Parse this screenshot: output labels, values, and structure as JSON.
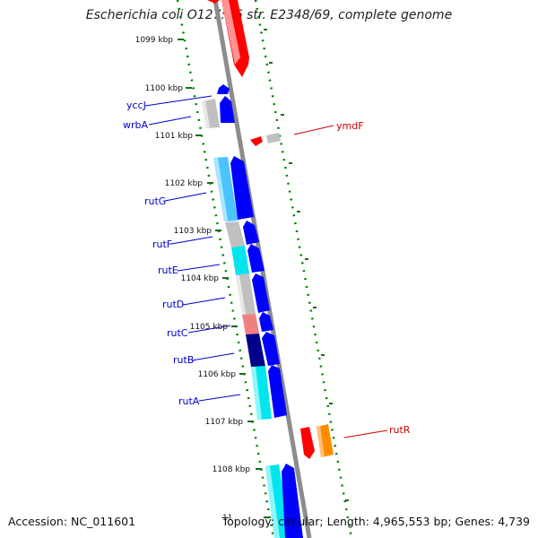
{
  "title": "Escherichia coli O127:H6 str. E2348/69, complete genome",
  "accession": "Accession: NC_011601",
  "topology_info": "Topology: circular; Length: 4,965,553 bp; Genes: 4,739",
  "ticks": [
    "1099 kbp",
    "1100 kbp",
    "1101 kbp",
    "1102 kbp",
    "1103 kbp",
    "1104 kbp",
    "1105 kbp",
    "1106 kbp",
    "1107 kbp",
    "1108 kbp",
    "11"
  ],
  "gene_labels": {
    "yccJ": "yccJ",
    "wrbA": "wrbA",
    "ymdF": "ymdF",
    "rutG": "rutG",
    "rutF": "rutF",
    "rutE": "rutE",
    "rutD": "rutD",
    "rutC": "rutC",
    "rutB": "rutB",
    "rutA": "rutA",
    "rutR": "rutR"
  },
  "colors": {
    "reverse_strand": "#0000ff",
    "forward_strand": "#ff0000",
    "backbone": "#8c8c8c",
    "gc_skew_dots": "#008000",
    "label_blue": "#0000cc",
    "label_red": "#cc0000",
    "cyan": "#00e5ee",
    "sky": "#4cc3ff",
    "navy": "#00008b",
    "grey": "#c0c0c0",
    "salmon": "#f08080",
    "orange": "#ff8c00"
  }
}
